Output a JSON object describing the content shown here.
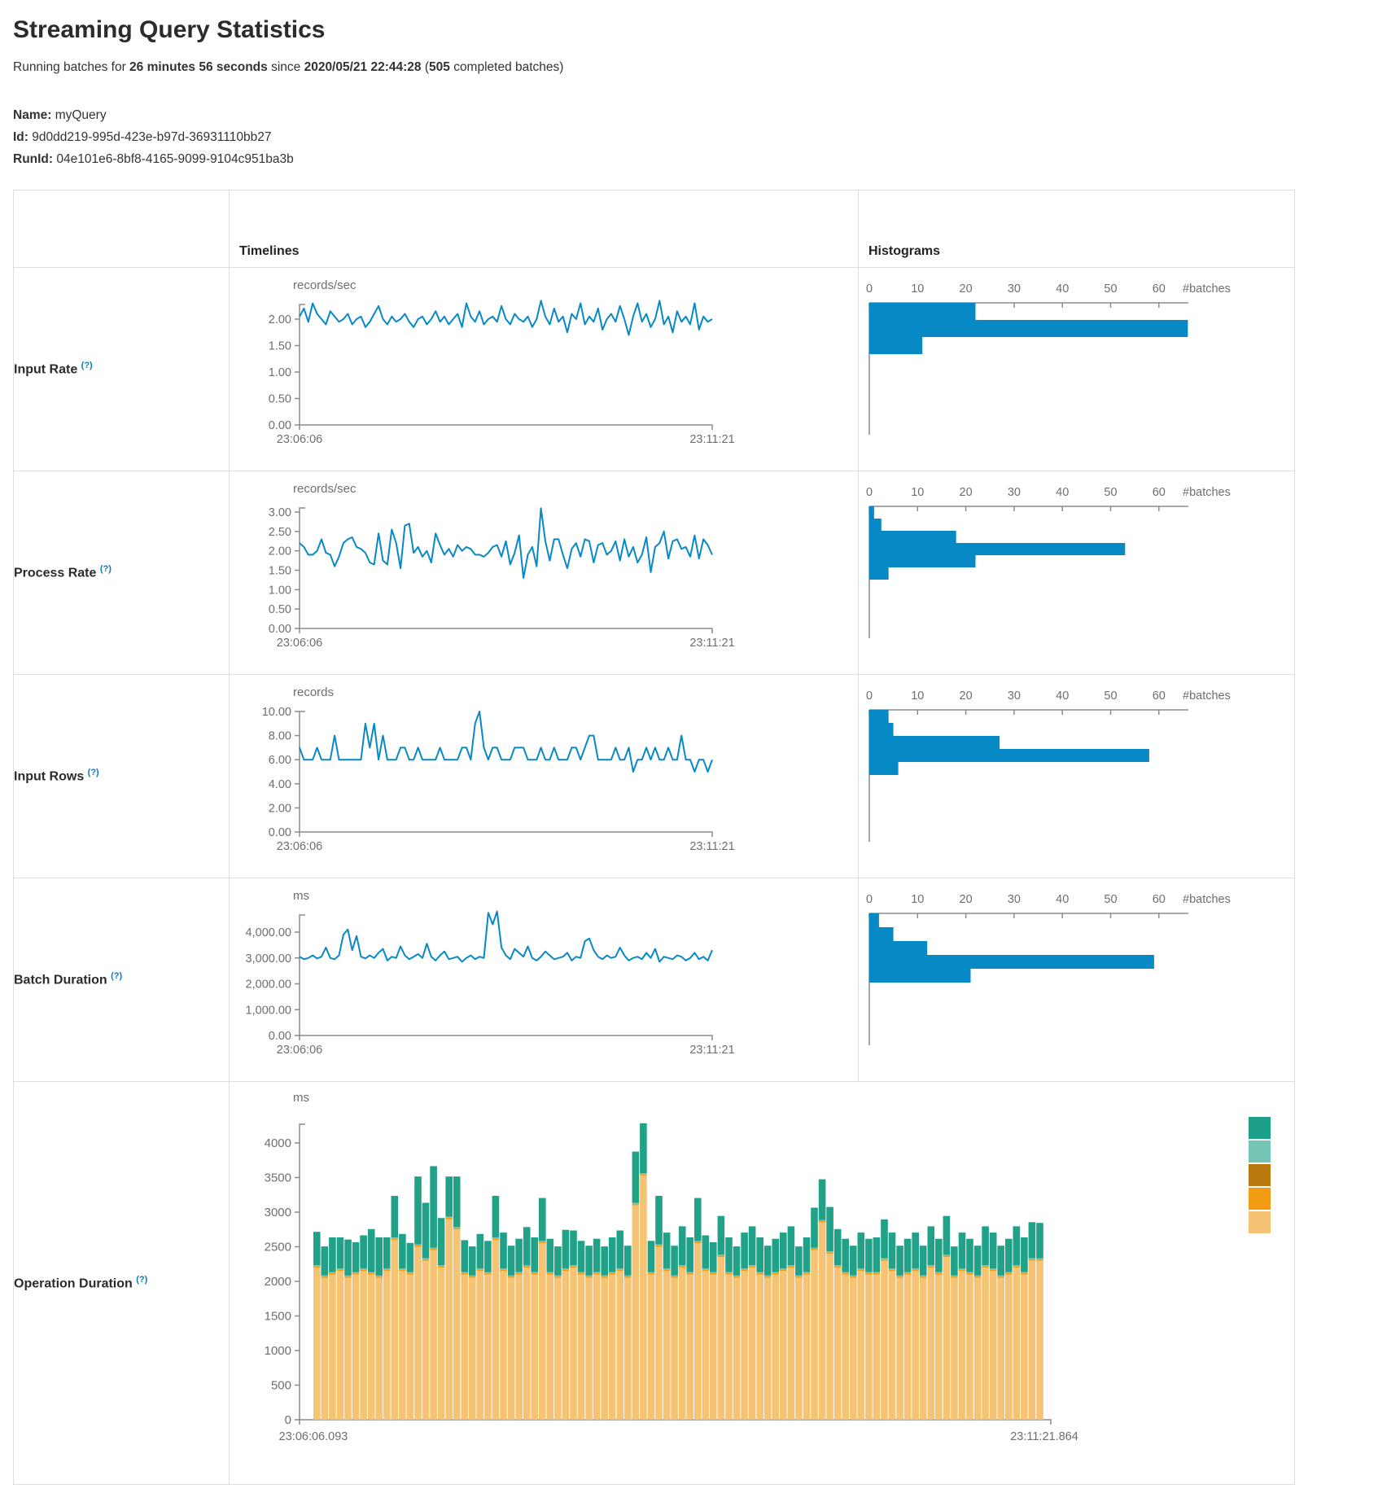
{
  "page": {
    "title": "Streaming Query Statistics"
  },
  "subtitle": {
    "prefix": "Running batches for",
    "duration": "26 minutes 56 seconds",
    "mid": "since",
    "timestamp": "2020/05/21 22:44:28",
    "paren_open": "(",
    "batches": "505",
    "suffix": "completed batches)"
  },
  "meta": {
    "name_label": "Name:",
    "name": "myQuery",
    "id_label": "Id:",
    "id": "9d0dd219-995d-423e-b97d-36931110bb27",
    "runid_label": "RunId:",
    "runid": "04e101e6-8bf8-4165-9099-9104c951ba3b"
  },
  "table": {
    "col_timelines": "Timelines",
    "col_histograms": "Histograms",
    "help_marker": "(?)"
  },
  "colors": {
    "blue": "#0789C6",
    "axis_line": "#8c8c8c",
    "axis_text": "#6e6e6e",
    "border": "#dddddd",
    "op_tan": "#F5C373",
    "op_orange": "#F39B12",
    "op_light_teal": "#74C5B4",
    "op_green": "#21A288"
  },
  "chart_data": [
    {
      "type": "line",
      "row_label": "Input Rate",
      "timeline": {
        "unit": "records/sec",
        "x_start": "23:06:06",
        "x_end": "23:11:21",
        "y_tick_values": [
          0,
          0.5,
          1,
          1.5,
          2
        ],
        "y_tick_labels": [
          "0.00",
          "0.50",
          "1.00",
          "1.50",
          "2.00"
        ],
        "values": [
          2.05,
          2.2,
          1.95,
          2.3,
          2.1,
          2.0,
          1.9,
          2.15,
          2.05,
          1.95,
          2.0,
          2.1,
          1.9,
          2.0,
          2.05,
          1.85,
          1.95,
          2.1,
          2.25,
          2.0,
          1.9,
          2.05,
          1.95,
          2.0,
          2.1,
          1.95,
          1.85,
          2.0,
          2.05,
          1.9,
          2.0,
          2.15,
          1.95,
          2.05,
          1.9,
          2.0,
          2.1,
          1.85,
          2.3,
          2.05,
          1.95,
          2.15,
          1.9,
          2.0,
          2.05,
          1.95,
          2.25,
          2.0,
          1.9,
          2.1,
          2.0,
          1.95,
          2.05,
          1.85,
          2.0,
          2.35,
          2.05,
          1.9,
          2.2,
          1.95,
          2.05,
          1.75,
          2.1,
          2.0,
          2.3,
          1.9,
          2.05,
          1.95,
          2.2,
          1.8,
          2.0,
          2.1,
          1.95,
          2.25,
          2.0,
          1.7,
          2.05,
          2.3,
          1.95,
          2.1,
          1.85,
          2.0,
          2.35,
          1.9,
          2.05,
          1.75,
          2.15,
          1.95,
          2.05,
          1.9,
          2.3,
          1.8,
          2.05,
          1.95,
          2.0
        ]
      },
      "histogram": {
        "type": "bar",
        "x_tick_values": [
          0,
          10,
          20,
          30,
          40,
          50,
          60
        ],
        "x_label": "#batches",
        "bar_values": [
          22,
          66,
          11
        ]
      }
    },
    {
      "type": "line",
      "row_label": "Process Rate",
      "timeline": {
        "unit": "records/sec",
        "x_start": "23:06:06",
        "x_end": "23:11:21",
        "y_tick_values": [
          0,
          0.5,
          1,
          1.5,
          2,
          2.5,
          3
        ],
        "y_tick_labels": [
          "0.00",
          "0.50",
          "1.00",
          "1.50",
          "2.00",
          "2.50",
          "3.00"
        ],
        "values": [
          2.2,
          2.1,
          1.9,
          1.9,
          2.0,
          2.3,
          1.95,
          1.9,
          1.6,
          1.85,
          2.2,
          2.3,
          2.35,
          2.1,
          2.05,
          1.95,
          1.7,
          1.65,
          2.45,
          1.75,
          1.65,
          2.55,
          2.2,
          1.55,
          2.65,
          2.7,
          1.95,
          2.1,
          1.85,
          2.0,
          1.7,
          2.45,
          2.15,
          1.9,
          2.05,
          1.85,
          2.15,
          2.0,
          2.1,
          2.05,
          1.9,
          1.9,
          1.85,
          1.95,
          2.1,
          2.15,
          1.85,
          2.25,
          1.65,
          1.95,
          2.4,
          1.3,
          1.9,
          2.1,
          1.6,
          3.1,
          2.25,
          1.75,
          2.3,
          2.3,
          1.9,
          1.55,
          2.05,
          2.2,
          1.85,
          2.3,
          2.25,
          1.7,
          2.15,
          2.2,
          1.9,
          2.0,
          2.25,
          1.75,
          2.3,
          1.85,
          2.1,
          1.7,
          1.9,
          2.35,
          1.45,
          2.1,
          2.2,
          2.5,
          1.8,
          2.25,
          2.3,
          2.05,
          2.1,
          1.85,
          2.4,
          1.8,
          2.3,
          2.15,
          1.9
        ]
      },
      "histogram": {
        "type": "bar",
        "x_tick_values": [
          0,
          10,
          20,
          30,
          40,
          50,
          60
        ],
        "x_label": "#batches",
        "bar_values": [
          1,
          2.5,
          18,
          53,
          22,
          4
        ]
      }
    },
    {
      "type": "line",
      "row_label": "Input Rows",
      "timeline": {
        "unit": "records",
        "x_start": "23:06:06",
        "x_end": "23:11:21",
        "y_tick_values": [
          0,
          2,
          4,
          6,
          8,
          10
        ],
        "y_tick_labels": [
          "0.00",
          "2.00",
          "4.00",
          "6.00",
          "8.00",
          "10.00"
        ],
        "values": [
          7,
          6,
          6,
          6,
          7,
          6,
          6,
          6,
          8,
          6,
          6,
          6,
          6,
          6,
          6,
          9,
          7,
          9,
          6,
          8,
          6,
          6,
          6,
          7,
          7,
          6,
          6,
          7,
          6,
          6,
          6,
          6,
          7,
          6,
          6,
          6,
          6,
          7,
          7,
          6,
          9,
          10,
          7,
          6,
          7,
          7,
          6,
          6,
          6,
          7,
          7,
          7,
          6,
          6,
          6,
          7,
          6,
          6,
          7,
          6,
          6,
          6,
          7,
          7,
          6,
          7,
          8,
          8,
          6,
          6,
          6,
          6,
          7,
          6,
          6,
          7,
          5,
          6,
          6,
          7,
          6,
          7,
          6,
          6,
          7,
          6,
          6,
          8,
          6,
          6,
          5,
          6,
          6,
          5,
          6
        ]
      },
      "histogram": {
        "type": "bar",
        "x_tick_values": [
          0,
          10,
          20,
          30,
          40,
          50,
          60
        ],
        "x_label": "#batches",
        "bar_values": [
          4,
          5,
          27,
          58,
          6
        ]
      }
    },
    {
      "type": "line",
      "row_label": "Batch Duration",
      "timeline": {
        "unit": "ms",
        "x_start": "23:06:06",
        "x_end": "23:11:21",
        "y_tick_values": [
          0,
          1000,
          2000,
          3000,
          4000
        ],
        "y_tick_labels": [
          "0.00",
          "1,000.00",
          "2,000.00",
          "3,000.00",
          "4,000.00"
        ],
        "values": [
          3050,
          2950,
          3000,
          3100,
          2980,
          3050,
          3400,
          3000,
          2950,
          3100,
          3900,
          4100,
          3300,
          3850,
          3050,
          2980,
          3100,
          3000,
          3200,
          3350,
          2900,
          3050,
          3000,
          3450,
          3100,
          2950,
          3050,
          3150,
          3000,
          3550,
          3050,
          2900,
          3100,
          3250,
          2950,
          3000,
          3050,
          2850,
          3000,
          3100,
          2950,
          3050,
          3000,
          4750,
          4300,
          4800,
          3400,
          3100,
          2950,
          3350,
          3200,
          3050,
          3450,
          3000,
          2900,
          3050,
          3250,
          3100,
          2950,
          3000,
          3050,
          3200,
          2900,
          3050,
          3000,
          3650,
          3750,
          3300,
          3050,
          2950,
          3100,
          3000,
          3050,
          3400,
          3100,
          2900,
          3000,
          3050,
          2950,
          3200,
          3000,
          3350,
          2850,
          3050,
          3000,
          2950,
          3100,
          3050,
          2900,
          3000,
          3200,
          2950,
          3050,
          2900,
          3300
        ]
      },
      "histogram": {
        "type": "bar",
        "x_tick_values": [
          0,
          10,
          20,
          30,
          40,
          50,
          60
        ],
        "x_label": "#batches",
        "bar_values": [
          2,
          5,
          12,
          59,
          21
        ]
      }
    },
    {
      "type": "stacked-bar",
      "row_label": "Operation Duration",
      "unit": "ms",
      "x_start": "23:06:06.093",
      "x_end": "23:11:21.864",
      "y_tick_values": [
        0,
        500,
        1000,
        1500,
        2000,
        2500,
        3000,
        3500,
        4000
      ],
      "y_tick_labels": [
        "0",
        "500",
        "1000",
        "1500",
        "2000",
        "2500",
        "3000",
        "3500",
        "4000"
      ],
      "series": [
        {
          "name": "bottom-tan",
          "color": "#F5C373",
          "values": [
            2200,
            2050,
            2100,
            2150,
            2050,
            2100,
            2150,
            2100,
            2050,
            2150,
            2600,
            2150,
            2100,
            2500,
            2300,
            2450,
            2200,
            2900,
            2750,
            2100,
            2050,
            2150,
            2100,
            2600,
            2150,
            2050,
            2100,
            2200,
            2100,
            2550,
            2100,
            2050,
            2150,
            2200,
            2100,
            2050,
            2100,
            2050,
            2100,
            2150,
            2050,
            3100,
            3530,
            2100,
            2500,
            2150,
            2050,
            2200,
            2100,
            2550,
            2150,
            2100,
            2350,
            2100,
            2050,
            2150,
            2200,
            2100,
            2050,
            2100,
            2150,
            2200,
            2050,
            2100,
            2450,
            2850,
            2400,
            2200,
            2100,
            2050,
            2150,
            2100,
            2100,
            2300,
            2150,
            2050,
            2100,
            2150,
            2050,
            2200,
            2100,
            2350,
            2050,
            2150,
            2100,
            2050,
            2200,
            2150,
            2050,
            2100,
            2200,
            2100,
            2300,
            2300
          ]
        },
        {
          "name": "sliver-orange",
          "color": "#F39B12",
          "constant": 20
        },
        {
          "name": "sliver-light-teal",
          "color": "#74C5B4",
          "constant": 15
        },
        {
          "name": "top-green",
          "color": "#21A288",
          "values": [
            480,
            420,
            500,
            450,
            520,
            430,
            480,
            620,
            550,
            450,
            600,
            500,
            420,
            980,
            800,
            1180,
            680,
            580,
            730,
            460,
            420,
            500,
            450,
            600,
            520,
            430,
            480,
            550,
            500,
            620,
            480,
            420,
            560,
            500,
            450,
            430,
            480,
            420,
            500,
            550,
            430,
            740,
            720,
            450,
            700,
            520,
            430,
            560,
            500,
            620,
            480,
            430,
            560,
            500,
            420,
            520,
            560,
            500,
            430,
            480,
            520,
            560,
            420,
            500,
            580,
            590,
            640,
            520,
            480,
            430,
            520,
            480,
            500,
            560,
            520,
            430,
            480,
            520,
            430,
            560,
            480,
            560,
            420,
            520,
            480,
            430,
            560,
            520,
            430,
            480,
            560,
            500,
            520,
            510
          ]
        }
      ],
      "legend_swatch_colors": [
        "#1CA089",
        "#74C5B4",
        "#B8780D",
        "#F39B12",
        "#F6C375"
      ]
    }
  ]
}
